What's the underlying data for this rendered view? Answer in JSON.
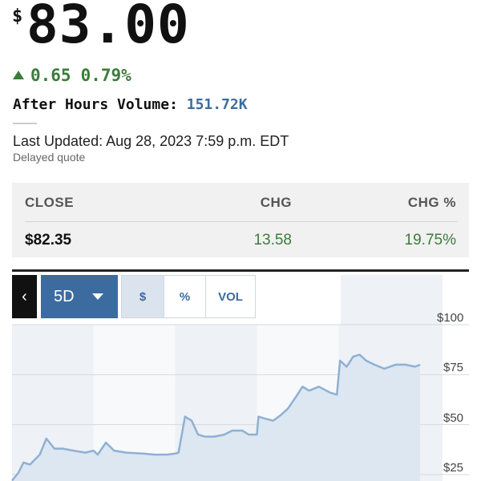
{
  "quote": {
    "currency_symbol": "$",
    "price": "83.00",
    "change": "0.65",
    "change_percent": "0.79%",
    "after_hours_label": "After Hours Volume:",
    "after_hours_volume": "151.72K",
    "last_updated": "Last Updated: Aug 28, 2023 7:59 p.m. EDT",
    "delayed": "Delayed quote",
    "change_color": "#3b7d3b"
  },
  "close_table": {
    "headers": [
      "CLOSE",
      "CHG",
      "CHG %"
    ],
    "values": [
      "$82.35",
      "13.58",
      "19.75%"
    ]
  },
  "chart_controls": {
    "back_icon": "chevron-left-icon",
    "back_glyph": "‹",
    "period": "5D",
    "modes": [
      "$",
      "%",
      "VOL"
    ],
    "active_mode": "$",
    "accent": "#3c6ba0"
  },
  "chart_data": {
    "type": "area",
    "title": "",
    "xlabel": "",
    "ylabel": "",
    "ylim": [
      20,
      105
    ],
    "y_ticks": [
      "$100",
      "$75",
      "$50",
      "$25"
    ],
    "y_tick_values": [
      100,
      75,
      50,
      25
    ],
    "grid": true,
    "line_color": "#8fb0d4",
    "fill_color": "#dde7f1",
    "days": 5,
    "values": [
      [
        0,
        22
      ],
      [
        0.08,
        26
      ],
      [
        0.14,
        31
      ],
      [
        0.22,
        30
      ],
      [
        0.34,
        35
      ],
      [
        0.42,
        43
      ],
      [
        0.52,
        38
      ],
      [
        0.62,
        38
      ],
      [
        0.75,
        37
      ],
      [
        0.9,
        36
      ],
      [
        1.0,
        37
      ],
      [
        1.05,
        35
      ],
      [
        1.15,
        41
      ],
      [
        1.25,
        37
      ],
      [
        1.4,
        36
      ],
      [
        1.6,
        35.5
      ],
      [
        1.75,
        35
      ],
      [
        1.9,
        35
      ],
      [
        2.0,
        35.5
      ],
      [
        2.04,
        36
      ],
      [
        2.12,
        54
      ],
      [
        2.2,
        52
      ],
      [
        2.28,
        45
      ],
      [
        2.36,
        44
      ],
      [
        2.48,
        44
      ],
      [
        2.6,
        45
      ],
      [
        2.7,
        47
      ],
      [
        2.82,
        47
      ],
      [
        2.9,
        45
      ],
      [
        3.0,
        45
      ],
      [
        3.02,
        54
      ],
      [
        3.1,
        53
      ],
      [
        3.2,
        52
      ],
      [
        3.3,
        55
      ],
      [
        3.38,
        58
      ],
      [
        3.48,
        64
      ],
      [
        3.56,
        69
      ],
      [
        3.64,
        67
      ],
      [
        3.76,
        69
      ],
      [
        3.9,
        66
      ],
      [
        3.98,
        65
      ],
      [
        4.02,
        82
      ],
      [
        4.1,
        79
      ],
      [
        4.18,
        84
      ],
      [
        4.26,
        85
      ],
      [
        4.34,
        82
      ],
      [
        4.44,
        80
      ],
      [
        4.56,
        78
      ],
      [
        4.7,
        80
      ],
      [
        4.82,
        80
      ],
      [
        4.94,
        79
      ],
      [
        5.0,
        80
      ]
    ]
  }
}
